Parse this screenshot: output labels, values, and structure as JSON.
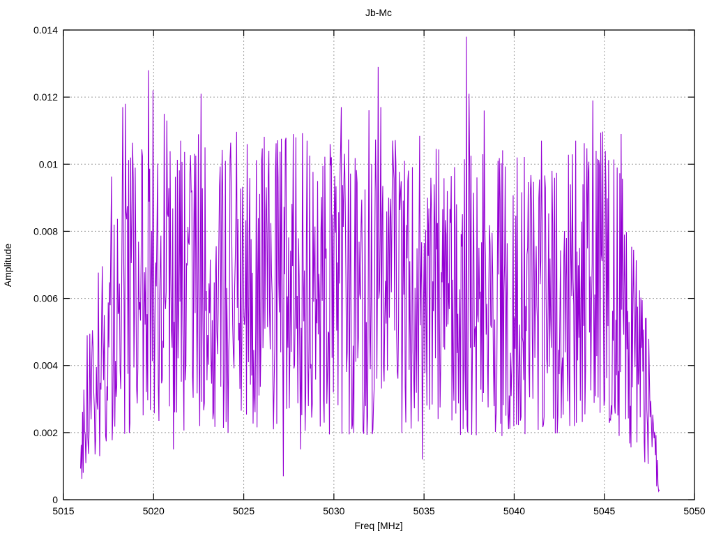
{
  "window": {
    "background": "#ffffff"
  },
  "chart_data": {
    "type": "line",
    "title": "Jb-Mc",
    "xlabel": "Freq [MHz]",
    "ylabel": "Amplitude",
    "xlim": [
      5015,
      5050
    ],
    "ylim": [
      0,
      0.014
    ],
    "xticks": [
      5015,
      5020,
      5025,
      5030,
      5035,
      5040,
      5045,
      5050
    ],
    "xtick_labels": [
      "5015",
      "5020",
      "5025",
      "5030",
      "5035",
      "5040",
      "5045",
      "5050"
    ],
    "yticks": [
      0,
      0.002,
      0.004,
      0.006,
      0.008,
      0.01,
      0.012,
      0.014
    ],
    "ytick_labels": [
      "0",
      "0.002",
      "0.004",
      "0.006",
      "0.008",
      "0.01",
      "0.012",
      "0.014"
    ],
    "grid": {
      "show": true,
      "line_style": "dotted",
      "color": "#9c9c9c",
      "mirrored_ticks": true
    },
    "legend": "none",
    "axes_color": "#000000",
    "series": [
      {
        "name": "Jb-Mc",
        "color": "#9400d3",
        "style": "dense noisy amplitude spectrum line",
        "freq_start": 5015.95,
        "freq_end": 5048.05,
        "n_points": 880,
        "seed": 77,
        "mean_amplitude": 0.0063,
        "envelope": [
          [
            5015.95,
            0.0012
          ],
          [
            5016.2,
            0.0025
          ],
          [
            5016.6,
            0.0042
          ],
          [
            5017.2,
            0.0052
          ],
          [
            5018.0,
            0.0062
          ],
          [
            5019.0,
            0.0066
          ],
          [
            5021.0,
            0.0063
          ],
          [
            5023.0,
            0.0066
          ],
          [
            5025.5,
            0.0064
          ],
          [
            5028.0,
            0.0066
          ],
          [
            5031.0,
            0.0064
          ],
          [
            5034.0,
            0.0065
          ],
          [
            5037.0,
            0.0064
          ],
          [
            5040.0,
            0.0063
          ],
          [
            5043.0,
            0.0064
          ],
          [
            5045.3,
            0.0067
          ],
          [
            5046.3,
            0.0055
          ],
          [
            5046.9,
            0.0042
          ],
          [
            5047.5,
            0.0028
          ],
          [
            5048.05,
            0.0005
          ]
        ],
        "peaks": [
          [
            5018.3,
            0.0117
          ],
          [
            5018.45,
            0.0118
          ],
          [
            5019.7,
            0.0128
          ],
          [
            5019.95,
            0.0122
          ],
          [
            5020.6,
            0.0115
          ],
          [
            5020.75,
            0.0113
          ],
          [
            5021.5,
            0.0107
          ],
          [
            5022.65,
            0.0121
          ],
          [
            5022.85,
            0.0105
          ],
          [
            5024.0,
            0.0101
          ],
          [
            5025.2,
            0.0106
          ],
          [
            5026.4,
            0.0104
          ],
          [
            5027.3,
            0.0107
          ],
          [
            5027.9,
            0.0108
          ],
          [
            5028.5,
            0.0107
          ],
          [
            5029.1,
            0.0095
          ],
          [
            5030.4,
            0.0117
          ],
          [
            5032.45,
            0.0129
          ],
          [
            5032.6,
            0.0117
          ],
          [
            5033.3,
            0.01
          ],
          [
            5033.9,
            0.0101
          ],
          [
            5035.2,
            0.009
          ],
          [
            5036.3,
            0.0092
          ],
          [
            5037.35,
            0.0138
          ],
          [
            5037.5,
            0.0121
          ],
          [
            5038.35,
            0.0116
          ],
          [
            5039.1,
            0.0101
          ],
          [
            5040.15,
            0.0102
          ],
          [
            5041.5,
            0.0107
          ],
          [
            5042.1,
            0.0098
          ],
          [
            5044.35,
            0.0119
          ],
          [
            5044.55,
            0.0104
          ],
          [
            5045.05,
            0.0104
          ],
          [
            5045.7,
            0.0099
          ],
          [
            5045.95,
            0.0109
          ]
        ],
        "dips": [
          [
            5016.1,
            0.0008
          ],
          [
            5017.0,
            0.0013
          ],
          [
            5021.1,
            0.0015
          ],
          [
            5027.2,
            0.0007
          ],
          [
            5028.15,
            0.0015
          ],
          [
            5031.1,
            0.002
          ],
          [
            5034.9,
            0.0012
          ],
          [
            5043.1,
            0.0022
          ],
          [
            5047.9,
            0.0004
          ]
        ]
      }
    ]
  }
}
